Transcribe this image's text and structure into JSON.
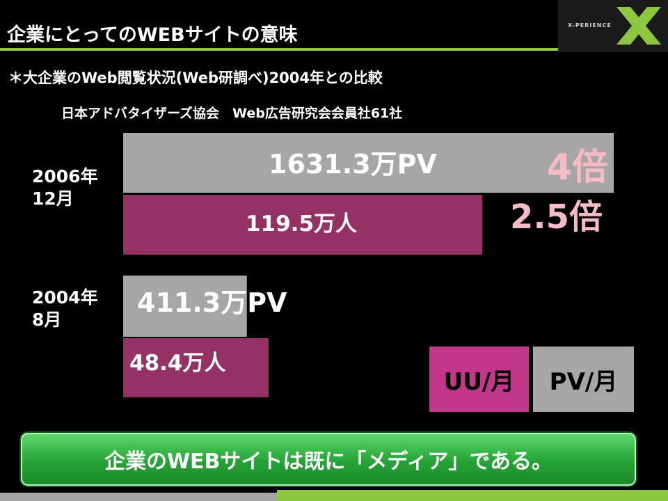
{
  "header": {
    "title": "企業にとってのWEBサイトの意味",
    "logo_text": "X-PERIENCE",
    "logo_mark": "x-logo-icon"
  },
  "subtitle": "＊大企業のWeb閲覧状況(Web研調べ)2004年との比較",
  "source": "日本アドバタイザーズ協会　Web広告研究会会員社61社",
  "chart_data": {
    "type": "bar",
    "orientation": "horizontal",
    "categories": [
      "2006年\n12月",
      "2004年\n8月"
    ],
    "series": [
      {
        "name": "PV/月",
        "values": [
          1631.3,
          411.3
        ],
        "labels": [
          "1631.3万PV",
          "411.3万PV"
        ],
        "color": "#a6a6a6"
      },
      {
        "name": "UU/月",
        "values": [
          119.5,
          48.4
        ],
        "labels": [
          "119.5万人",
          "48.4万人"
        ],
        "color": "#953265"
      }
    ],
    "annotations": [
      {
        "text": "4倍",
        "series": "PV/月",
        "color": "#f5bcc4"
      },
      {
        "text": "2.5倍",
        "series": "UU/月",
        "color": "#f5bcc4"
      }
    ],
    "legend": [
      "UU/月",
      "PV/月"
    ],
    "legend_colors": [
      "#c2378a",
      "#a6a6a6"
    ],
    "grid": false
  },
  "conclusion": "企業のWEBサイトは既に「メディア」である。"
}
